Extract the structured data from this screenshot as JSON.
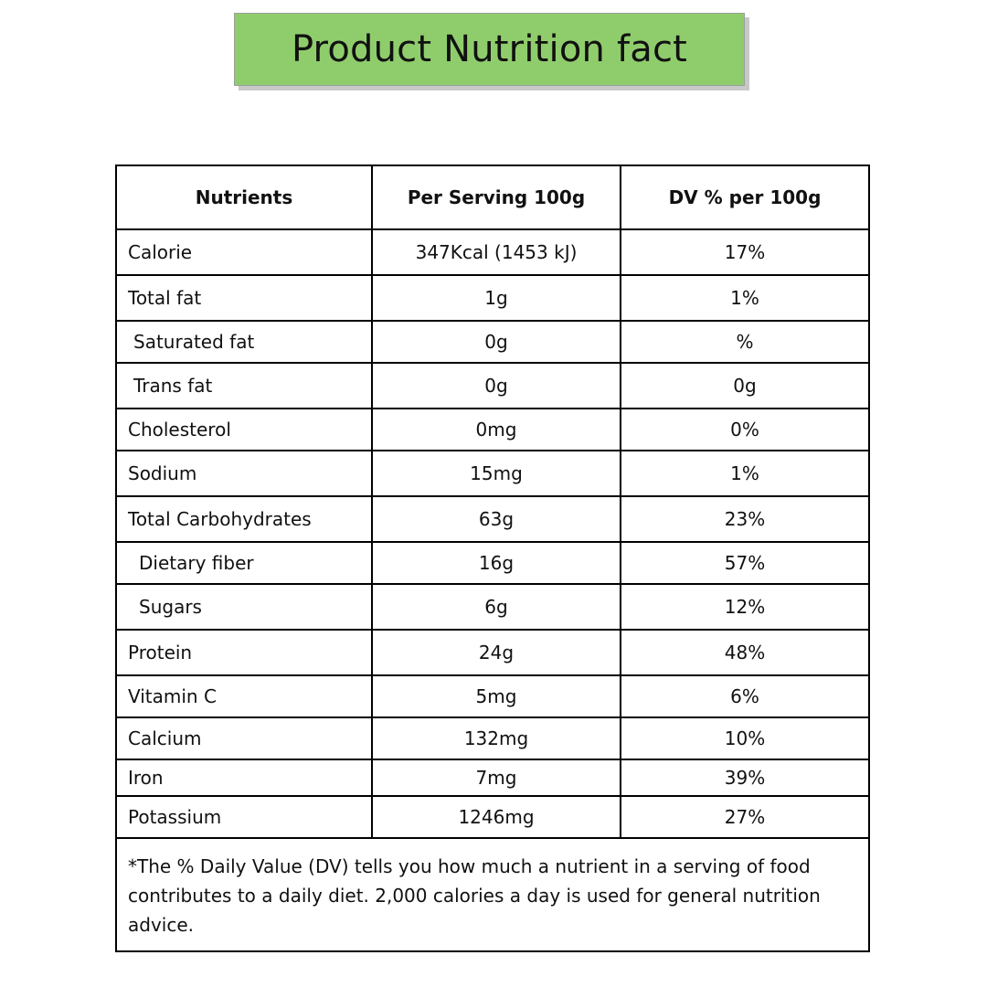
{
  "title": "Product Nutrition fact",
  "table": {
    "headers": [
      "Nutrients",
      "Per Serving 100g",
      "DV % per 100g"
    ],
    "rows": [
      {
        "name": "Calorie",
        "per_serving": "347Kcal (1453 kJ)",
        "dv": "17%"
      },
      {
        "name": "Total fat",
        "per_serving": "1g",
        "dv": "1%"
      },
      {
        "name": "Saturated fat",
        "per_serving": "0g",
        "dv": "%"
      },
      {
        "name": "Trans fat",
        "per_serving": "0g",
        "dv": "0g"
      },
      {
        "name": "Cholesterol",
        "per_serving": "0mg",
        "dv": "0%"
      },
      {
        "name": "Sodium",
        "per_serving": "15mg",
        "dv": "1%"
      },
      {
        "name": "Total Carbohydrates",
        "per_serving": "63g",
        "dv": "23%"
      },
      {
        "name": "Dietary fiber",
        "per_serving": "16g",
        "dv": "57%"
      },
      {
        "name": "Sugars",
        "per_serving": "6g",
        "dv": "12%"
      },
      {
        "name": "Protein",
        "per_serving": "24g",
        "dv": "48%"
      },
      {
        "name": "Vitamin C",
        "per_serving": "5mg",
        "dv": "6%"
      },
      {
        "name": "Calcium",
        "per_serving": "132mg",
        "dv": "10%"
      },
      {
        "name": "Iron",
        "per_serving": "7mg",
        "dv": "39%"
      },
      {
        "name": "Potassium",
        "per_serving": "1246mg",
        "dv": "27%"
      }
    ],
    "footnote": "*The % Daily Value (DV) tells you how much a nutrient in a serving of food contributes to a daily diet. 2,000 calories a day is used for general nutrition advice."
  },
  "colors": {
    "title_background": "#8fcd6c",
    "title_shadow": "#c8c8c8",
    "border": "#000000"
  }
}
